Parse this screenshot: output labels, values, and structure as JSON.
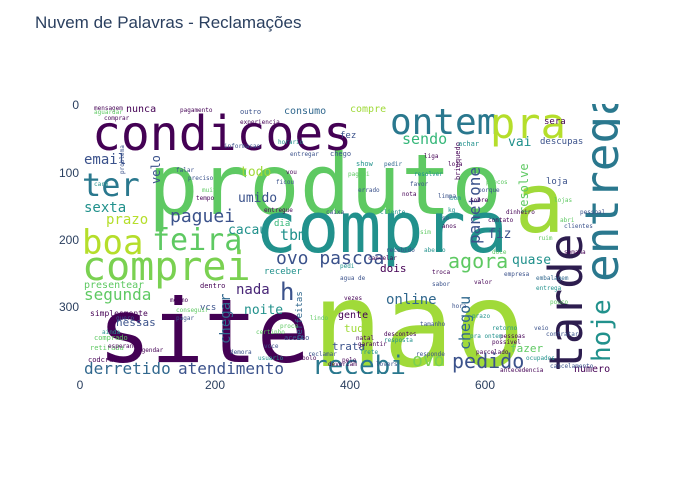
{
  "title": "Nuvem de Palavras - Reclamações",
  "axis": {
    "y_ticks": [
      "0",
      "100",
      "200",
      "300"
    ],
    "x_ticks": [
      "0",
      "200",
      "400",
      "600"
    ]
  },
  "palette": {
    "dark_purple": "#440154",
    "indigo": "#3b528b",
    "teal": "#21918c",
    "green": "#5ec962",
    "lime": "#a0da39",
    "yellow": "#fde725"
  },
  "words": [
    {
      "text": "nao",
      "color": "#a0da39"
    },
    {
      "text": "produto",
      "color": "#5ec962"
    },
    {
      "text": "compra",
      "color": "#21918c"
    },
    {
      "text": "site",
      "color": "#440154"
    },
    {
      "text": "entrega",
      "color": "#2a788e"
    },
    {
      "text": "tarde",
      "color": "#2d1d4f"
    },
    {
      "text": "condicoes",
      "color": "#440154"
    },
    {
      "text": "comprei",
      "color": "#7ad151"
    },
    {
      "text": "boa",
      "color": "#b5de2b"
    },
    {
      "text": "feira",
      "color": "#5ec962"
    },
    {
      "text": "ontem",
      "color": "#2a788e"
    },
    {
      "text": "pra",
      "color": "#b5de2b"
    },
    {
      "text": "a",
      "color": "#a0da39"
    },
    {
      "text": "ter",
      "color": "#2a788e"
    },
    {
      "text": "hoje",
      "color": "#21918c"
    },
    {
      "text": "recebi",
      "color": "#2a788e"
    },
    {
      "text": "pedido",
      "color": "#3b528b"
    },
    {
      "text": "ovo pascoa",
      "color": "#3b528b"
    },
    {
      "text": "agora",
      "color": "#5ec962"
    },
    {
      "text": "paguei",
      "color": "#3b528b"
    },
    {
      "text": "email",
      "color": "#3b528b"
    },
    {
      "text": "segunda",
      "color": "#5ec962"
    },
    {
      "text": "atendimento",
      "color": "#3b528b"
    },
    {
      "text": "derretido",
      "color": "#31688e"
    },
    {
      "text": "chegar",
      "color": "#31688e"
    },
    {
      "text": "tbm",
      "color": "#21918c"
    },
    {
      "text": "sexta",
      "color": "#21918c"
    },
    {
      "text": "prazo",
      "color": "#b5de2b"
    },
    {
      "text": "panetone",
      "color": "#3b528b"
    },
    {
      "text": "chegou",
      "color": "#31688e"
    },
    {
      "text": "ovo",
      "color": "#7ad151"
    },
    {
      "text": "online",
      "color": "#31688e"
    },
    {
      "text": "sendo",
      "color": "#35b779"
    },
    {
      "text": "todo",
      "color": "#a0da39"
    },
    {
      "text": "umido",
      "color": "#3b528b"
    },
    {
      "text": "cacau",
      "color": "#21918c"
    },
    {
      "text": "nada",
      "color": "#482677"
    },
    {
      "text": "noite",
      "color": "#21918c"
    },
    {
      "text": "velo",
      "color": "#3b528b"
    },
    {
      "text": "fiz",
      "color": "#3b528b"
    },
    {
      "text": "vai",
      "color": "#21918c"
    },
    {
      "text": "resolve",
      "color": "#5ec962"
    },
    {
      "text": "quase",
      "color": "#21918c"
    },
    {
      "text": "h",
      "color": "#3b528b"
    },
    {
      "text": "dois",
      "color": "#440154"
    },
    {
      "text": "presentear",
      "color": "#5ec962"
    },
    {
      "text": "nessas",
      "color": "#3b528b"
    },
    {
      "text": "nunca",
      "color": "#440154"
    },
    {
      "text": "trata",
      "color": "#3b528b"
    },
    {
      "text": "tudo",
      "color": "#a0da39"
    },
    {
      "text": "gente",
      "color": "#440154"
    },
    {
      "text": "compre",
      "color": "#a0da39"
    },
    {
      "text": "consumo",
      "color": "#31688e"
    },
    {
      "text": "numero",
      "color": "#440154"
    },
    {
      "text": "fazer",
      "color": "#5ec962"
    },
    {
      "text": "vcs",
      "color": "#3b528b"
    },
    {
      "text": "receber",
      "color": "#21918c"
    },
    {
      "text": "dia",
      "color": "#35b779"
    },
    {
      "text": "fez",
      "color": "#3b528b"
    },
    {
      "text": "descupas",
      "color": "#3b528b"
    },
    {
      "text": "sera",
      "color": "#440154"
    },
    {
      "text": "loja",
      "color": "#3b528b"
    },
    {
      "text": "perfeitas",
      "color": "#31688e"
    },
    {
      "text": "simplesmente",
      "color": "#440154"
    },
    {
      "text": "aceito",
      "color": "#3b528b"
    },
    {
      "text": "show",
      "color": "#21918c"
    },
    {
      "text": "dentro",
      "color": "#440154"
    },
    {
      "text": "retirada",
      "color": "#5ec962"
    },
    {
      "text": "codcrada",
      "color": "#440154"
    },
    {
      "text": "chego",
      "color": "#3b528b"
    },
    {
      "text": "brinquedo",
      "color": "#440154"
    },
    {
      "text": "pagamento",
      "color": "#440154"
    },
    {
      "text": "outro",
      "color": "#3b528b"
    },
    {
      "text": "experiencia",
      "color": "#440154"
    },
    {
      "text": "achar",
      "color": "#21918c"
    },
    {
      "text": "cancelamento",
      "color": "#3b528b"
    },
    {
      "text": "antecedencia",
      "color": "#440154"
    },
    {
      "text": "tamanho",
      "color": "#3b528b"
    },
    {
      "text": "ocupados",
      "color": "#21918c"
    },
    {
      "text": "comprado",
      "color": "#5ec962"
    },
    {
      "text": "mensagem",
      "color": "#440154"
    },
    {
      "text": "aguardar",
      "color": "#5ec962"
    },
    {
      "text": "problema",
      "color": "#3b528b"
    },
    {
      "text": "pessoas",
      "color": "#440154"
    },
    {
      "text": "bom",
      "color": "#21918c"
    },
    {
      "text": "responde",
      "color": "#3b528b"
    },
    {
      "text": "contato",
      "color": "#440154"
    },
    {
      "text": "ruim",
      "color": "#5ec962"
    },
    {
      "text": "garantir",
      "color": "#440154"
    },
    {
      "text": "pedir",
      "color": "#31688e"
    },
    {
      "text": "falar",
      "color": "#3b528b"
    },
    {
      "text": "resposta",
      "color": "#21918c"
    },
    {
      "text": "loja",
      "color": "#440154"
    },
    {
      "text": "pessoal",
      "color": "#3b528b"
    },
    {
      "text": "pouco",
      "color": "#5ec962"
    },
    {
      "text": "vezes",
      "color": "#440154"
    },
    {
      "text": "caixa",
      "color": "#3b528b"
    },
    {
      "text": "aberto",
      "color": "#21918c"
    },
    {
      "text": "semana",
      "color": "#440154"
    },
    {
      "text": "embalagem",
      "color": "#31688e"
    },
    {
      "text": "empresa",
      "color": "#3b528b"
    },
    {
      "text": "entregue",
      "color": "#440154"
    },
    {
      "text": "cliente",
      "color": "#21918c"
    },
    {
      "text": "errado",
      "color": "#3b528b"
    },
    {
      "text": "lojas",
      "color": "#5ec962"
    },
    {
      "text": "valor",
      "color": "#440154"
    },
    {
      "text": "veio",
      "color": "#3b528b"
    },
    {
      "text": "prazo",
      "color": "#21918c"
    },
    {
      "text": "troca",
      "color": "#440154"
    },
    {
      "text": "sabor",
      "color": "#3b528b"
    },
    {
      "text": "doce",
      "color": "#5ec962"
    },
    {
      "text": "dinheiro",
      "color": "#440154"
    },
    {
      "text": "agua de",
      "color": "#3b528b"
    },
    {
      "text": "pedi",
      "color": "#21918c"
    },
    {
      "text": "liga",
      "color": "#440154"
    },
    {
      "text": "limpa",
      "color": "#3b528b"
    },
    {
      "text": "certinho",
      "color": "#5ec962"
    },
    {
      "text": "descontos",
      "color": "#440154"
    },
    {
      "text": "hora",
      "color": "#3b528b"
    },
    {
      "text": "retorno",
      "color": "#21918c"
    },
    {
      "text": "possivel",
      "color": "#440154"
    },
    {
      "text": "contratar",
      "color": "#3b528b"
    },
    {
      "text": "bolo",
      "color": "#440154"
    },
    {
      "text": "reclamar",
      "color": "#3b528b"
    },
    {
      "text": "frete",
      "color": "#21918c"
    },
    {
      "text": "pelo",
      "color": "#440154"
    },
    {
      "text": "lindo",
      "color": "#5ec962"
    },
    {
      "text": "demora",
      "color": "#3b528b"
    },
    {
      "text": "esperando",
      "color": "#440154"
    },
    {
      "text": "ainda",
      "color": "#21918c"
    },
    {
      "text": "quero",
      "color": "#3b528b"
    },
    {
      "text": "mesmo",
      "color": "#440154"
    },
    {
      "text": "conseguir",
      "color": "#5ec962"
    },
    {
      "text": "pagar",
      "color": "#3b528b"
    },
    {
      "text": "agendar",
      "color": "#440154"
    },
    {
      "text": "pra ontem",
      "color": "#21918c"
    },
    {
      "text": "deveriam",
      "color": "#440154"
    },
    {
      "text": "lovers",
      "color": "#3b528b"
    },
    {
      "text": "parcelado",
      "color": "#440154"
    },
    {
      "text": "proce",
      "color": "#5ec962"
    },
    {
      "text": "voce",
      "color": "#3b528b"
    },
    {
      "text": "usuario",
      "color": "#21918c"
    },
    {
      "text": "natal",
      "color": "#440154"
    },
    {
      "text": "entregar",
      "color": "#3b528b"
    },
    {
      "text": "entrega",
      "color": "#21918c"
    },
    {
      "text": "abri",
      "color": "#5ec962"
    },
    {
      "text": "clientes",
      "color": "#3b528b"
    },
    {
      "text": "comprar",
      "color": "#440154"
    },
    {
      "text": "caro",
      "color": "#21918c"
    },
    {
      "text": "preciso",
      "color": "#3b528b"
    },
    {
      "text": "tempo",
      "color": "#440154"
    },
    {
      "text": "muito",
      "color": "#5ec962"
    },
    {
      "text": "informacao",
      "color": "#3b528b"
    },
    {
      "text": "horario",
      "color": "#21918c"
    },
    {
      "text": "vou",
      "color": "#440154"
    },
    {
      "text": "ficou",
      "color": "#3b528b"
    },
    {
      "text": "paguei",
      "color": "#5ec962"
    },
    {
      "text": "nota",
      "color": "#440154"
    },
    {
      "text": "favor",
      "color": "#3b528b"
    },
    {
      "text": "resolver",
      "color": "#21918c"
    },
    {
      "text": "cancelar",
      "color": "#440154"
    },
    {
      "text": "recebido",
      "color": "#3b528b"
    },
    {
      "text": "sim",
      "color": "#5ec962"
    },
    {
      "text": "anos",
      "color": "#440154"
    },
    {
      "text": "so",
      "color": "#3b528b"
    },
    {
      "text": "kg",
      "color": "#21918c"
    },
    {
      "text": "sobre",
      "color": "#440154"
    },
    {
      "text": "porque",
      "color": "#3b528b"
    },
    {
      "text": "precos",
      "color": "#5ec962"
    }
  ]
}
